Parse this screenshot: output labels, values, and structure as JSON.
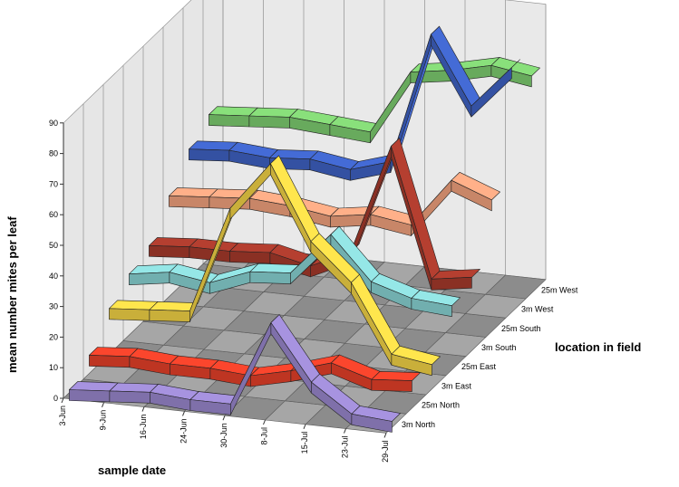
{
  "chart_data": {
    "type": "line",
    "subtype": "3d-ribbon",
    "xlabel": "sample date",
    "ylabel": "mean number mites per leaf",
    "zlabel": "location in field",
    "ylim": [
      0,
      90
    ],
    "yticks": [
      "0",
      "10",
      "20",
      "30",
      "40",
      "50",
      "60",
      "70",
      "80",
      "90"
    ],
    "categories": [
      "3-Jun",
      "9-Jun",
      "16-Jun",
      "24-Jun",
      "30-Jun",
      "8-Jul",
      "15-Jul",
      "23-Jul",
      "29-Jul"
    ],
    "series": [
      {
        "name": "3m North",
        "color": "#9b88cf",
        "values": [
          1,
          2,
          3,
          2,
          2,
          30,
          12,
          3,
          2
        ]
      },
      {
        "name": "25m North",
        "color": "#e8412a",
        "values": [
          6,
          7,
          6,
          6,
          5,
          8,
          12,
          8,
          9
        ]
      },
      {
        "name": "3m East",
        "color": "#f5d547",
        "values": [
          15,
          16,
          17,
          52,
          68,
          44,
          32,
          10,
          8
        ]
      },
      {
        "name": "25m East",
        "color": "#8ad6d6",
        "values": [
          20,
          22,
          20,
          25,
          26,
          40,
          26,
          22,
          21
        ]
      },
      {
        "name": "3m South",
        "color": "#a83a2c",
        "values": [
          23,
          24,
          24,
          25,
          22,
          28,
          64,
          22,
          24
        ]
      },
      {
        "name": "25m South",
        "color": "#f4a37f",
        "values": [
          33,
          34,
          35,
          34,
          32,
          34,
          32,
          48,
          43
        ]
      },
      {
        "name": "3m West",
        "color": "#3f63c6",
        "values": [
          42,
          43,
          42,
          43,
          41,
          45,
          88,
          66,
          80
        ]
      },
      {
        "name": "25m West",
        "color": "#7fcf72",
        "values": [
          47,
          48,
          49,
          48,
          47,
          68,
          70,
          73,
          71
        ]
      }
    ],
    "grid": true,
    "legend": "none"
  }
}
